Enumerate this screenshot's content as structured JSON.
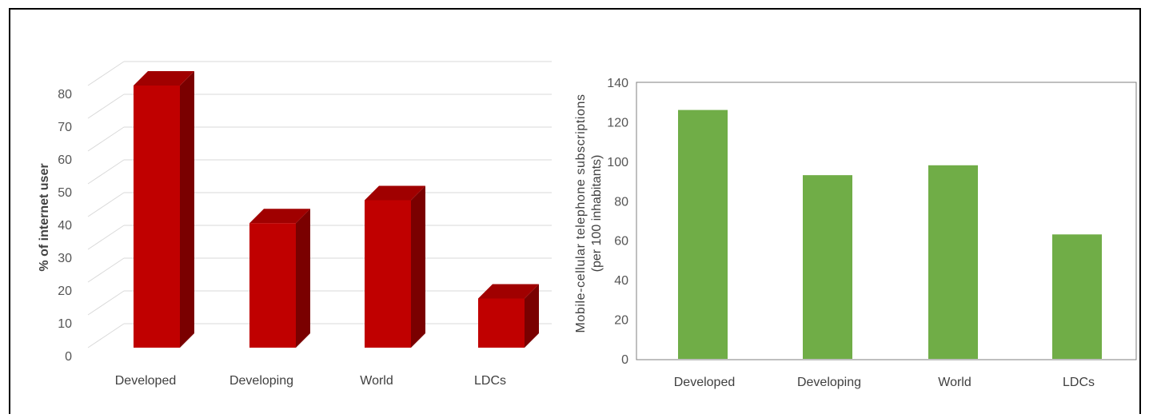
{
  "colors": {
    "bar_front": "#c00000",
    "bar_top": "#a00000",
    "bar_side": "#7a0000",
    "bar_green": "#70ad47",
    "grid": "#d9d9d9",
    "frame": "#000000"
  },
  "chart_data": [
    {
      "type": "bar",
      "style": "3d",
      "categories": [
        "Developed",
        "Developing",
        "World",
        "LDCs"
      ],
      "values": [
        80,
        38,
        45,
        15
      ],
      "title": "",
      "xlabel": "",
      "ylabel": "% of internet user",
      "ylim": [
        0,
        80
      ],
      "yticks": [
        0,
        10,
        20,
        30,
        40,
        50,
        60,
        70,
        80
      ],
      "grid": true,
      "legend": "none"
    },
    {
      "type": "bar",
      "categories": [
        "Developed",
        "Developing",
        "World",
        "LDCs"
      ],
      "values": [
        126,
        93,
        98,
        63
      ],
      "title": "",
      "xlabel": "",
      "ylabel": "Mobile-cellular telephone subscriptions",
      "ylabel_line2": "(per 100 inhabitants)",
      "ylim": [
        0,
        140
      ],
      "yticks": [
        0,
        20,
        40,
        60,
        80,
        100,
        120,
        140
      ],
      "grid": false,
      "legend": "none"
    }
  ]
}
